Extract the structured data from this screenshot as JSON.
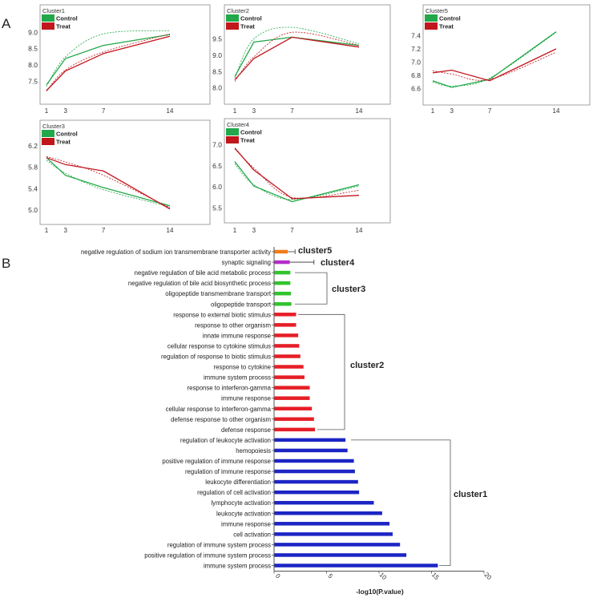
{
  "panel_labels": {
    "a": "A",
    "b": "B"
  },
  "legend_labels": {
    "control": "Control",
    "treat": "Treat"
  },
  "colors": {
    "control": "#22a84a",
    "treat": "#c0161c",
    "cluster5": "#f07c1c",
    "cluster4": "#b52ec8",
    "cluster3": "#31c42d",
    "cluster2": "#e61e26",
    "cluster1": "#1c25c4",
    "axis": "#555555",
    "frame": "#8a8a8a"
  },
  "chart_data": [
    {
      "type": "line",
      "title": "Cluster1",
      "x": [
        1,
        3,
        7,
        14
      ],
      "xticks": [
        "1",
        "3",
        "7",
        "14"
      ],
      "yticks": [
        "7.5",
        "8.0",
        "8.5",
        "9.0"
      ],
      "ylim": [
        7.0,
        9.3
      ],
      "series": [
        {
          "name": "Control",
          "values": [
            7.4,
            8.2,
            8.6,
            8.93
          ],
          "fit": [
            7.35,
            8.25,
            8.95,
            9.05
          ]
        },
        {
          "name": "Treat",
          "values": [
            7.22,
            7.82,
            8.35,
            8.88
          ],
          "fit": [
            7.2,
            7.85,
            8.4,
            8.95
          ]
        }
      ]
    },
    {
      "type": "line",
      "title": "Cluster2",
      "x": [
        1,
        3,
        7,
        14
      ],
      "xticks": [
        "1",
        "3",
        "7",
        "14"
      ],
      "yticks": [
        "8.0",
        "8.5",
        "9.0",
        "9.5"
      ],
      "ylim": [
        7.7,
        10.0
      ],
      "series": [
        {
          "name": "Control",
          "values": [
            8.35,
            9.4,
            9.55,
            9.3
          ],
          "fit": [
            8.3,
            9.5,
            9.85,
            9.35
          ]
        },
        {
          "name": "Treat",
          "values": [
            8.25,
            8.9,
            9.55,
            9.25
          ],
          "fit": [
            8.2,
            8.95,
            9.7,
            9.3
          ]
        }
      ]
    },
    {
      "type": "line",
      "title": "Cluster5",
      "x": [
        1,
        3,
        7,
        14
      ],
      "xticks": [
        "1",
        "3",
        "7",
        "14"
      ],
      "yticks": [
        "6.6",
        "6.8",
        "7.0",
        "7.2",
        "7.4"
      ],
      "ylim": [
        6.45,
        7.6
      ],
      "series": [
        {
          "name": "Control",
          "values": [
            6.72,
            6.62,
            6.74,
            7.46
          ],
          "fit": [
            6.7,
            6.64,
            6.76,
            7.45
          ]
        },
        {
          "name": "Treat",
          "values": [
            6.84,
            6.88,
            6.72,
            7.2
          ],
          "fit": [
            6.87,
            6.82,
            6.74,
            7.15
          ]
        }
      ]
    },
    {
      "type": "line",
      "title": "Cluster3",
      "x": [
        1,
        3,
        7,
        14
      ],
      "xticks": [
        "1",
        "3",
        "7",
        "14"
      ],
      "yticks": [
        "5.0",
        "5.4",
        "5.8",
        "6.2"
      ],
      "ylim": [
        4.85,
        6.35
      ],
      "series": [
        {
          "name": "Control",
          "values": [
            5.98,
            5.65,
            5.42,
            5.08
          ],
          "fit": [
            5.93,
            5.69,
            5.38,
            5.06
          ]
        },
        {
          "name": "Treat",
          "values": [
            5.98,
            5.85,
            5.73,
            5.02
          ],
          "fit": [
            6.0,
            5.9,
            5.65,
            5.04
          ]
        }
      ]
    },
    {
      "type": "line",
      "title": "Cluster4",
      "x": [
        1,
        3,
        7,
        14
      ],
      "xticks": [
        "1",
        "3",
        "7",
        "14"
      ],
      "yticks": [
        "5.5",
        "6.0",
        "6.5",
        "7.0"
      ],
      "ylim": [
        5.3,
        7.2
      ],
      "series": [
        {
          "name": "Control",
          "values": [
            6.6,
            6.02,
            5.65,
            6.05
          ],
          "fit": [
            6.55,
            6.05,
            5.7,
            6.02
          ]
        },
        {
          "name": "Treat",
          "values": [
            6.92,
            6.4,
            5.72,
            5.8
          ],
          "fit": [
            6.9,
            6.45,
            5.75,
            5.92
          ]
        }
      ]
    },
    {
      "type": "bar",
      "orientation": "horizontal",
      "xlabel": "-log10(P.value)",
      "xlim": [
        0,
        20
      ],
      "xticks": [
        "0",
        "5",
        "10",
        "15",
        "20"
      ],
      "groups": [
        {
          "name": "cluster5",
          "categories": [
            "negative regulation of sodium ion transmembrane transporter activity"
          ],
          "values": [
            1.3
          ],
          "errors": [
            0.7
          ]
        },
        {
          "name": "cluster4",
          "categories": [
            "synaptic signaling"
          ],
          "values": [
            1.5
          ],
          "errors": [
            2.3
          ]
        },
        {
          "name": "cluster3",
          "categories": [
            "negative regulation of bile acid metabolic process",
            "negative regulation of bile acid biosynthetic process",
            "oligopeptide transmembrane transport",
            "oligopeptide transport"
          ],
          "values": [
            1.55,
            1.55,
            1.6,
            1.65
          ]
        },
        {
          "name": "cluster2",
          "categories": [
            "response to external biotic stimulus",
            "response to other organism",
            "innate immune response",
            "cellular response to cytokine stimulus",
            "regulation of response to biotic stimulus",
            "response to cytokine",
            "immune system process",
            "response to interferon-gamma",
            "immune response",
            "cellular response to interferon-gamma",
            "defense response to other organism",
            "defense response"
          ],
          "values": [
            2.1,
            2.1,
            2.3,
            2.4,
            2.5,
            2.8,
            2.9,
            3.4,
            3.4,
            3.6,
            3.8,
            3.9
          ]
        },
        {
          "name": "cluster1",
          "categories": [
            "regulation of leukocyte activation",
            "hemopoiesis",
            "positive regulation of immune response",
            "regulation of immune response",
            "leukocyte differentiation",
            "regulation of cell activation",
            "lymphocyte activation",
            "leukocyte activation",
            "immune response",
            "cell activation",
            "regulation of immune system process",
            "positive regulation of immune system process",
            "immune system process"
          ],
          "values": [
            6.8,
            7.0,
            7.6,
            7.7,
            8.0,
            8.1,
            9.5,
            10.3,
            11.0,
            11.3,
            12.0,
            12.6,
            15.6
          ]
        }
      ]
    }
  ]
}
